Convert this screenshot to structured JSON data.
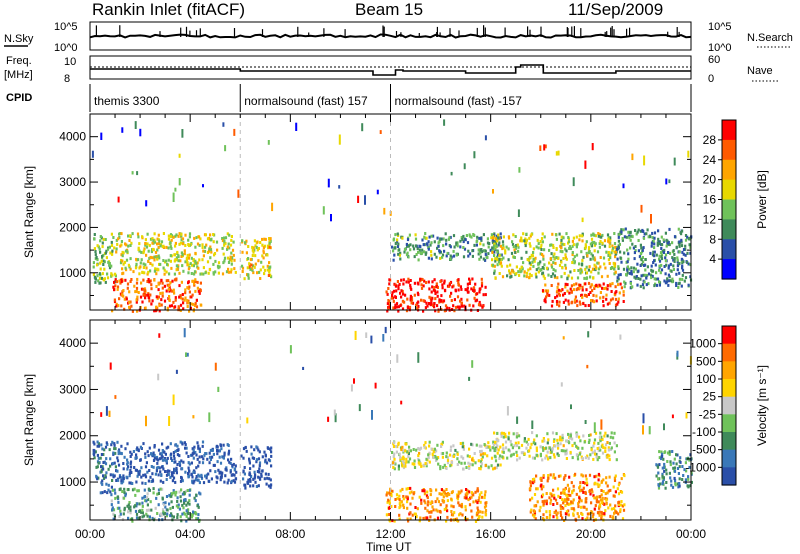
{
  "header": {
    "station": "Rankin Inlet (fitACF)",
    "beam": "Beam 15",
    "date": "11/Sep/2009"
  },
  "labels": {
    "nsky": "N.Sky",
    "freq": "Freq.",
    "mhz": "[MHz]",
    "cpid": "CPID",
    "nsearch": "N.Search",
    "nave": "Nave",
    "nsky_ticks": [
      "10^5",
      "10^0"
    ],
    "freq_ticks": [
      "10",
      "8"
    ],
    "nave_ticks": [
      "60",
      "0"
    ]
  },
  "cpid_segments": [
    {
      "label": "themis 3300",
      "start_hour": 0
    },
    {
      "label": "normalsound (fast) 157",
      "start_hour": 6
    },
    {
      "label": "normalsound (fast) -157",
      "start_hour": 12
    }
  ],
  "colors": {
    "power": [
      "#0000ff",
      "#2a4fa8",
      "#3f8a5a",
      "#6fc25a",
      "#e8d800",
      "#ffa500",
      "#ff5a00",
      "#ff0000"
    ],
    "velocity": [
      "#2a4fa8",
      "#3a78b8",
      "#3f8a5a",
      "#6fc25a",
      "#c8c8c8",
      "#ffd400",
      "#ffa500",
      "#ff6a00",
      "#ff0000"
    ]
  },
  "chart_data": [
    {
      "type": "heatmap",
      "name": "power",
      "xlabel": "Time UT",
      "ylabel": "Slant Range [km]",
      "x_range_hours": [
        0,
        24
      ],
      "ylim_km": [
        180,
        4500
      ],
      "x_ticks": [
        "00:00",
        "04:00",
        "08:00",
        "12:00",
        "16:00",
        "20:00",
        "00:00"
      ],
      "y_ticks": [
        "1000",
        "2000",
        "3000",
        "4000"
      ],
      "colorbar": {
        "label": "Power [dB]",
        "tick_labels": [
          "28",
          "24",
          "20",
          "16",
          "12",
          "8",
          "4"
        ]
      },
      "echo_regions": [
        {
          "t0": 0.1,
          "t1": 1.0,
          "r0": 800,
          "r1": 1900,
          "level": 0.45
        },
        {
          "t0": 0.8,
          "t1": 4.4,
          "r0": 180,
          "r1": 900,
          "level": 0.8
        },
        {
          "t0": 1.0,
          "t1": 5.8,
          "r0": 1000,
          "r1": 1900,
          "level": 0.55
        },
        {
          "t0": 6.0,
          "t1": 7.2,
          "r0": 900,
          "r1": 1800,
          "level": 0.6
        },
        {
          "t0": 11.8,
          "t1": 15.8,
          "r0": 180,
          "r1": 900,
          "level": 0.95
        },
        {
          "t0": 12.0,
          "t1": 16.5,
          "r0": 1300,
          "r1": 1900,
          "level": 0.35
        },
        {
          "t0": 16.0,
          "t1": 21.0,
          "r0": 900,
          "r1": 1900,
          "level": 0.5
        },
        {
          "t0": 18.0,
          "t1": 21.3,
          "r0": 300,
          "r1": 800,
          "level": 0.85
        },
        {
          "t0": 21.0,
          "t1": 24.0,
          "r0": 700,
          "r1": 2000,
          "level": 0.3
        }
      ]
    },
    {
      "type": "heatmap",
      "name": "velocity",
      "xlabel": "Time UT",
      "ylabel": "Slant Range [km]",
      "x_range_hours": [
        0,
        24
      ],
      "ylim_km": [
        180,
        4500
      ],
      "x_ticks": [
        "00:00",
        "04:00",
        "08:00",
        "12:00",
        "16:00",
        "20:00",
        "00:00"
      ],
      "y_ticks": [
        "1000",
        "2000",
        "3000",
        "4000"
      ],
      "colorbar": {
        "label": "Velocity [m s⁻¹]",
        "tick_labels": [
          "1000",
          "500",
          "100",
          "25",
          "-25",
          "-100",
          "-500",
          "-1000"
        ]
      },
      "echo_regions": [
        {
          "t0": 0.1,
          "t1": 1.0,
          "r0": 800,
          "r1": 1900,
          "level": 0.15
        },
        {
          "t0": 0.8,
          "t1": 4.4,
          "r0": 180,
          "r1": 900,
          "level": 0.3
        },
        {
          "t0": 1.0,
          "t1": 5.8,
          "r0": 1000,
          "r1": 1900,
          "level": 0.05
        },
        {
          "t0": 6.0,
          "t1": 7.2,
          "r0": 900,
          "r1": 1800,
          "level": 0.0
        },
        {
          "t0": 11.8,
          "t1": 15.8,
          "r0": 180,
          "r1": 900,
          "level": 0.75
        },
        {
          "t0": 12.0,
          "t1": 16.5,
          "r0": 1300,
          "r1": 1900,
          "level": 0.5
        },
        {
          "t0": 16.0,
          "t1": 21.0,
          "r0": 1500,
          "r1": 2100,
          "level": 0.5
        },
        {
          "t0": 17.5,
          "t1": 21.3,
          "r0": 200,
          "r1": 1200,
          "level": 0.75
        },
        {
          "t0": 22.5,
          "t1": 24.0,
          "r0": 900,
          "r1": 1700,
          "level": 0.25
        }
      ]
    }
  ]
}
